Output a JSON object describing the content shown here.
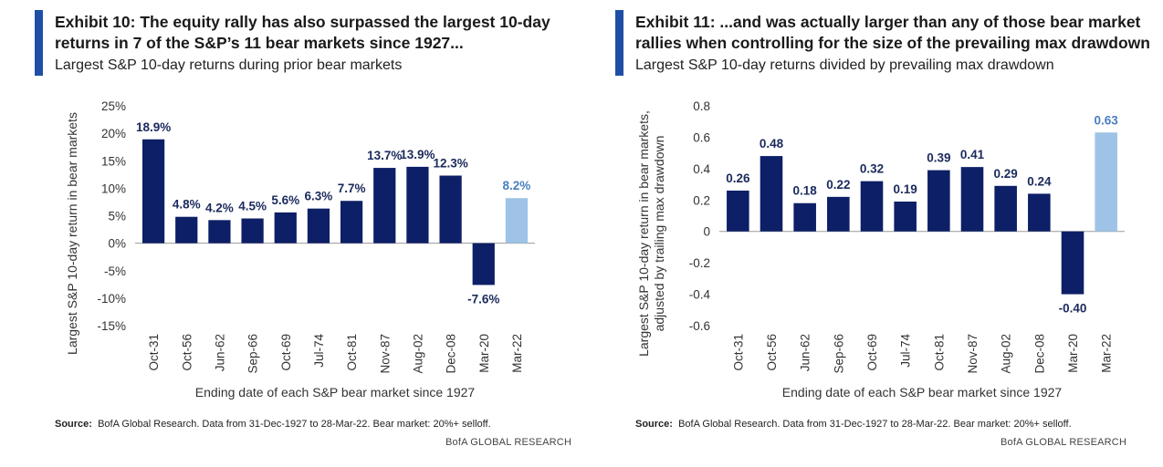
{
  "panels": [
    {
      "title": "Exhibit 10: The equity rally has also surpassed the largest 10-day returns in 7 of the S&P’s 11 bear markets since 1927...",
      "subtitle": "Largest S&P 10-day returns during prior bear markets",
      "source_label": "Source:",
      "source_text": "BofA Global Research. Data from 31-Dec-1927  to 28-Mar-22. Bear market: 20%+ selloff.",
      "credit": "BofA GLOBAL RESEARCH"
    },
    {
      "title": "Exhibit 11: ...and was actually larger than any of those bear market rallies when controlling for the size of the prevailing max drawdown",
      "subtitle": "Largest S&P 10-day returns divided by prevailing max drawdown",
      "source_label": "Source:",
      "source_text": "BofA Global Research. Data from 31-Dec-1927  to 28-Mar-22. Bear market: 20%+ selloff.",
      "credit": "BofA GLOBAL RESEARCH"
    }
  ],
  "colors": {
    "bar": "#0d1f66",
    "highlight": "#9ec3e6",
    "accent": "#1e4fa5",
    "highlight_label": "#4a7fc0"
  },
  "chart_data": [
    {
      "type": "bar",
      "categories": [
        "Oct-31",
        "Oct-56",
        "Jun-62",
        "Sep-66",
        "Oct-69",
        "Jul-74",
        "Oct-81",
        "Nov-87",
        "Aug-02",
        "Dec-08",
        "Mar-20",
        "Mar-22"
      ],
      "values": [
        18.9,
        4.8,
        4.2,
        4.5,
        5.6,
        6.3,
        7.7,
        13.7,
        13.9,
        12.3,
        -7.6,
        8.2
      ],
      "value_labels": [
        "18.9%",
        "4.8%",
        "4.2%",
        "4.5%",
        "5.6%",
        "6.3%",
        "7.7%",
        "13.7%",
        "13.9%",
        "12.3%",
        "-7.6%",
        "8.2%"
      ],
      "highlight_index": 11,
      "ylim": [
        -15,
        25
      ],
      "yticks": [
        -15,
        -10,
        -5,
        0,
        5,
        10,
        15,
        20,
        25
      ],
      "ytick_labels": [
        "-15%",
        "-10%",
        "-5%",
        "0%",
        "5%",
        "10%",
        "15%",
        "20%",
        "25%"
      ],
      "xlabel": "Ending date of each S&P bear market since 1927",
      "ylabel": "Largest S&P 10-day return in bear markets",
      "grid": false
    },
    {
      "type": "bar",
      "categories": [
        "Oct-31",
        "Oct-56",
        "Jun-62",
        "Sep-66",
        "Oct-69",
        "Jul-74",
        "Oct-81",
        "Nov-87",
        "Aug-02",
        "Dec-08",
        "Mar-20",
        "Mar-22"
      ],
      "values": [
        0.26,
        0.48,
        0.18,
        0.22,
        0.32,
        0.19,
        0.39,
        0.41,
        0.29,
        0.24,
        -0.4,
        0.63
      ],
      "value_labels": [
        "0.26",
        "0.48",
        "0.18",
        "0.22",
        "0.32",
        "0.19",
        "0.39",
        "0.41",
        "0.29",
        "0.24",
        "-0.40",
        "0.63"
      ],
      "highlight_index": 11,
      "ylim": [
        -0.6,
        0.8
      ],
      "yticks": [
        -0.6,
        -0.4,
        -0.2,
        0,
        0.2,
        0.4,
        0.6,
        0.8
      ],
      "ytick_labels": [
        "-0.6",
        "-0.4",
        "-0.2",
        "0",
        "0.2",
        "0.4",
        "0.6",
        "0.8"
      ],
      "xlabel": "Ending date of each S&P bear market since 1927",
      "ylabel": "Largest S&P 10-day return in bear markets, adjusted by trailing max drawdown",
      "ylabel_lines": [
        "Largest S&P 10-day return in bear markets,",
        "adjusted by trailing max drawdown"
      ],
      "grid": false
    }
  ]
}
